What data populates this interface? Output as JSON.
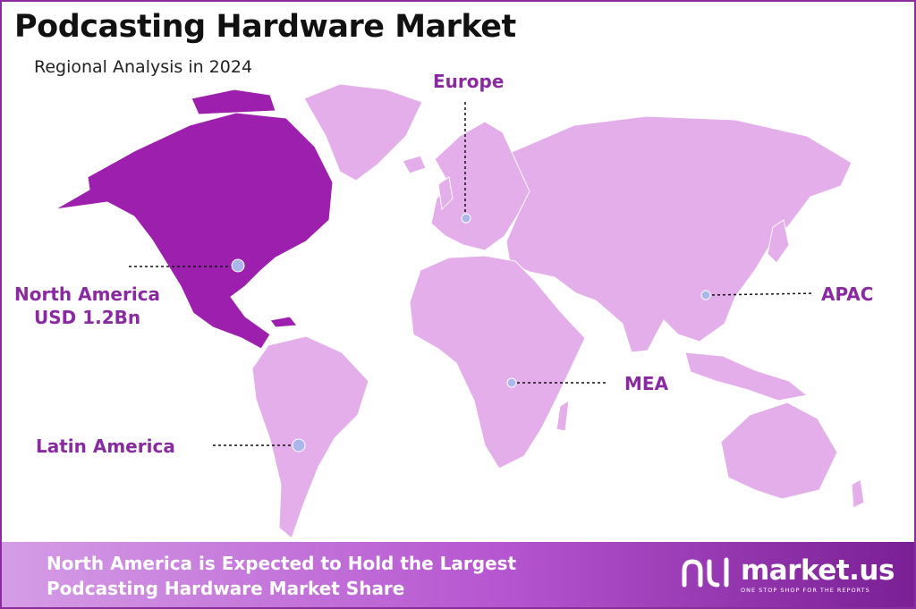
{
  "title": "Podcasting Hardware Market",
  "subtitle": "Regional Analysis in 2024",
  "colors": {
    "highlight_region": "#9d1fae",
    "other_regions": "#e3aeea",
    "label": "#8a2aa0",
    "marker": "#a9b7ea",
    "frame": "#8b2b9e"
  },
  "regions": {
    "europe": "Europe",
    "north_america": "North America",
    "north_america_value": "USD 1.2Bn",
    "apac": "APAC",
    "mea": "MEA",
    "latin_america": "Latin America"
  },
  "highlighted_region": "North America",
  "footer": {
    "line1": "North America is Expected to Hold the Largest",
    "line2": "Podcasting Hardware Market Share",
    "logo_name": "market.us",
    "logo_tagline": "ONE STOP SHOP FOR THE REPORTS"
  }
}
